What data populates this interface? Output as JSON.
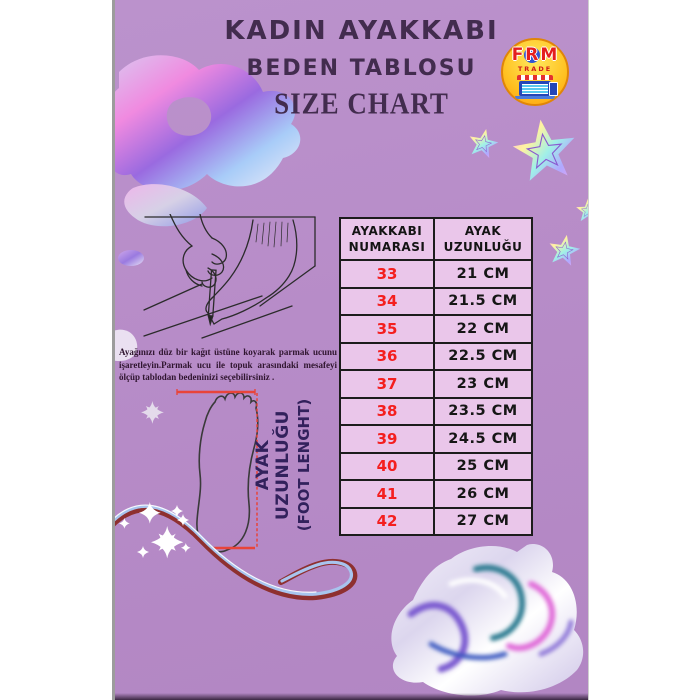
{
  "poster": {
    "title": {
      "line1": "KADIN AYAKKABI",
      "line2": "BEDEN TABLOSU",
      "line3": "SIZE CHART"
    },
    "logo": {
      "letter_f": "F",
      "letter_r": "R",
      "letter_m": "M",
      "sub": "TRADE"
    },
    "instructions": "Ayağınızı düz bir kağıt üstüne koyarak parmak ucunu işaretleyin.Parmak ucu ile topuk arasındaki mesafeyi ölçüp tablodan bedeninizi seçebilirsiniz .",
    "foot_label": {
      "line1": "AYAK UZUNLUĞU",
      "line2": "(FOOT LENGHT)"
    },
    "size_table": {
      "headers": [
        "AYAKKABI NUMARASI",
        "AYAK UZUNLUĞU"
      ],
      "rows": [
        [
          "33",
          "21 CM"
        ],
        [
          "34",
          "21.5 CM"
        ],
        [
          "35",
          "22 CM"
        ],
        [
          "36",
          "22.5 CM"
        ],
        [
          "37",
          "23 CM"
        ],
        [
          "38",
          "23.5 CM"
        ],
        [
          "39",
          "24.5 CM"
        ],
        [
          "40",
          "25 CM"
        ],
        [
          "41",
          "26 CM"
        ],
        [
          "42",
          "27 CM"
        ]
      ]
    },
    "colors": {
      "background_top": "#bb92cc",
      "background_bottom": "#b286c3",
      "title_text": "#422c4e",
      "table_cell": "#eac6ea",
      "table_border": "#1c1c1c",
      "size_number_red": "#f41f1f",
      "length_text": "#161616",
      "measure_line_red": "#e8443a",
      "logo_circle": "#ffc020"
    }
  }
}
